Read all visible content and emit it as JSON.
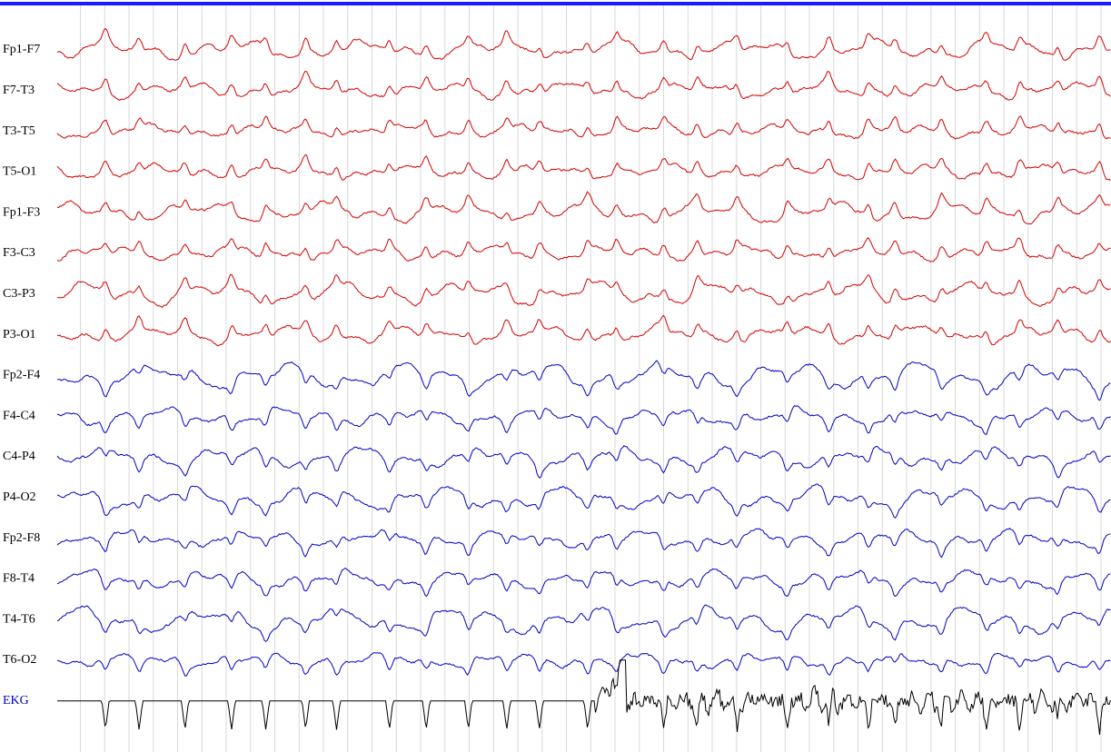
{
  "channels": [
    {
      "label": "Fp1-F7",
      "color": "#d40000"
    },
    {
      "label": "F7-T3",
      "color": "#d40000"
    },
    {
      "label": "T3-T5",
      "color": "#d40000"
    },
    {
      "label": "T5-O1",
      "color": "#d40000"
    },
    {
      "label": "Fp1-F3",
      "color": "#d40000"
    },
    {
      "label": "F3-C3",
      "color": "#d40000"
    },
    {
      "label": "C3-P3",
      "color": "#d40000"
    },
    {
      "label": "P3-O1",
      "color": "#d40000"
    },
    {
      "label": "Fp2-F4",
      "color": "#0000c8"
    },
    {
      "label": "F4-C4",
      "color": "#0000c8"
    },
    {
      "label": "C4-P4",
      "color": "#0000c8"
    },
    {
      "label": "P4-O2",
      "color": "#0000c8"
    },
    {
      "label": "Fp2-F8",
      "color": "#0000c8"
    },
    {
      "label": "F8-T4",
      "color": "#0000c8"
    },
    {
      "label": "T4-T6",
      "color": "#0000c8"
    },
    {
      "label": "T6-O2",
      "color": "#0000c8"
    },
    {
      "label": "EKG",
      "color": "#000000",
      "label_color": "#0000c8"
    }
  ]
}
